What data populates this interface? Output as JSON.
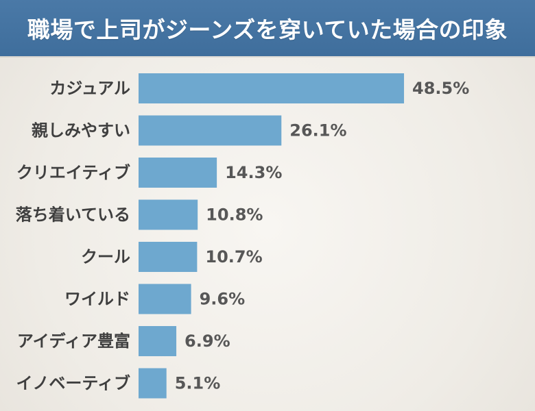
{
  "header": {
    "title": "職場で上司がジーンズを穿いていた場合の印象"
  },
  "colors": {
    "title_background": "#4676a5",
    "bar": "#6ea8cf",
    "background": "#f3f1ec"
  },
  "chart_data": {
    "type": "bar",
    "orientation": "horizontal",
    "title": "職場で上司がジーンズを穿いていた場合の印象",
    "categories": [
      "カジュアル",
      "親しみやすい",
      "クリエイティブ",
      "落ち着いている",
      "クール",
      "ワイルド",
      "アイディア豊富",
      "イノベーティブ"
    ],
    "values": [
      48.5,
      26.1,
      14.3,
      10.8,
      10.7,
      9.6,
      6.9,
      5.1
    ],
    "value_labels": [
      "48.5%",
      "26.1%",
      "14.3%",
      "10.8%",
      "10.7%",
      "9.6%",
      "6.9%",
      "5.1%"
    ],
    "unit": "%",
    "xlim": [
      0,
      100
    ],
    "grid": false,
    "legend": false
  }
}
